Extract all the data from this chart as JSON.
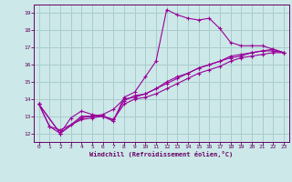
{
  "xlabel": "Windchill (Refroidissement éolien,°C)",
  "bg_color": "#cce8e8",
  "grid_color": "#aacccc",
  "line_color": "#990099",
  "xlim": [
    -0.5,
    23.5
  ],
  "ylim": [
    11.5,
    19.5
  ],
  "xticks": [
    0,
    1,
    2,
    3,
    4,
    5,
    6,
    7,
    8,
    9,
    10,
    11,
    12,
    13,
    14,
    15,
    16,
    17,
    18,
    19,
    20,
    21,
    22,
    23
  ],
  "yticks": [
    12,
    13,
    14,
    15,
    16,
    17,
    18,
    19
  ],
  "line1_x": [
    0,
    1,
    2,
    3,
    4,
    5,
    6,
    7,
    8,
    9,
    10,
    11,
    12,
    13,
    14,
    15,
    16,
    17,
    18,
    19,
    20,
    21,
    22,
    23
  ],
  "line1_y": [
    13.7,
    12.4,
    12.0,
    12.9,
    13.3,
    13.1,
    13.0,
    12.7,
    14.1,
    14.4,
    15.3,
    16.2,
    19.2,
    18.9,
    18.7,
    18.6,
    18.7,
    18.1,
    17.3,
    17.1,
    17.1,
    17.1,
    16.9,
    16.7
  ],
  "line2_x": [
    0,
    2,
    4,
    5,
    6,
    7,
    8,
    9,
    10,
    11,
    12,
    13,
    14,
    15,
    16,
    17,
    18,
    19,
    20,
    21,
    22,
    23
  ],
  "line2_y": [
    13.7,
    12.0,
    12.9,
    13.0,
    13.1,
    13.4,
    14.0,
    14.1,
    14.3,
    14.6,
    14.9,
    15.2,
    15.5,
    15.8,
    16.0,
    16.2,
    16.5,
    16.6,
    16.7,
    16.8,
    16.9,
    16.7
  ],
  "line3_x": [
    0,
    2,
    4,
    5,
    6,
    7,
    8,
    9,
    10,
    11,
    12,
    13,
    14,
    15,
    16,
    17,
    18,
    19,
    20,
    21,
    22,
    23
  ],
  "line3_y": [
    13.7,
    12.0,
    13.0,
    13.0,
    13.0,
    12.8,
    13.9,
    14.2,
    14.3,
    14.6,
    15.0,
    15.3,
    15.5,
    15.8,
    16.0,
    16.2,
    16.4,
    16.5,
    16.7,
    16.8,
    16.8,
    16.7
  ],
  "line4_x": [
    0,
    1,
    2,
    3,
    4,
    5,
    6,
    7,
    8,
    9,
    10,
    11,
    12,
    13,
    14,
    15,
    16,
    17,
    18,
    19,
    20,
    21,
    22,
    23
  ],
  "line4_y": [
    13.7,
    12.4,
    12.2,
    12.5,
    12.8,
    12.9,
    13.0,
    12.8,
    13.7,
    14.0,
    14.1,
    14.3,
    14.6,
    14.9,
    15.2,
    15.5,
    15.7,
    15.9,
    16.2,
    16.4,
    16.5,
    16.6,
    16.7,
    16.7
  ]
}
